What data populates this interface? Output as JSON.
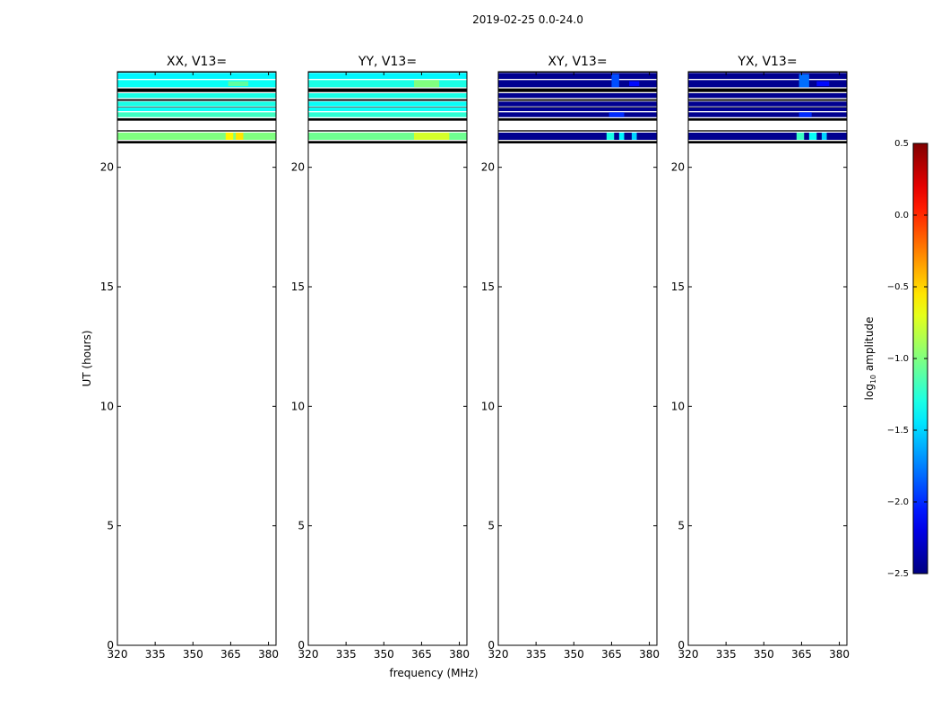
{
  "figure_title": "2019-02-25 0.0-24.0",
  "chart_data": {
    "type": "heatmap",
    "title": "2019-02-25 0.0-24.0",
    "xlabel": "frequency (MHz)",
    "ylabel": "UT (hours)",
    "xlim": [
      320,
      383
    ],
    "ylim": [
      0,
      24
    ],
    "x_ticks": [
      320,
      335,
      350,
      365,
      380
    ],
    "y_ticks": [
      0,
      5,
      10,
      15,
      20
    ],
    "panels": [
      {
        "title": "XX, V13=",
        "base_value": -1.3,
        "rows": [
          {
            "t0": 23.7,
            "t1": 23.95,
            "v": -1.4
          },
          {
            "t0": 23.35,
            "t1": 23.65,
            "v": -1.35
          },
          {
            "t0": 22.9,
            "t1": 23.1,
            "v": -1.3
          },
          {
            "t0": 22.55,
            "t1": 22.75,
            "v": -1.3
          },
          {
            "t0": 22.35,
            "t1": 22.5,
            "v": -1.35
          },
          {
            "t0": 22.1,
            "t1": 22.3,
            "v": -1.2
          },
          {
            "t0": 21.15,
            "t1": 21.45,
            "v": -1.0
          }
        ],
        "hotspots": [
          {
            "f0": 363,
            "f1": 366,
            "t0": 21.15,
            "t1": 21.45,
            "v": -0.6
          },
          {
            "f0": 367,
            "f1": 370,
            "t0": 21.15,
            "t1": 21.45,
            "v": -0.55
          },
          {
            "f0": 364,
            "f1": 372,
            "t0": 23.4,
            "t1": 23.6,
            "v": -1.1
          }
        ]
      },
      {
        "title": "YY, V13=",
        "base_value": -1.3,
        "rows": [
          {
            "t0": 23.7,
            "t1": 23.95,
            "v": -1.4
          },
          {
            "t0": 23.35,
            "t1": 23.65,
            "v": -1.3
          },
          {
            "t0": 22.9,
            "t1": 23.1,
            "v": -1.3
          },
          {
            "t0": 22.55,
            "t1": 22.75,
            "v": -1.35
          },
          {
            "t0": 22.35,
            "t1": 22.5,
            "v": -1.35
          },
          {
            "t0": 22.1,
            "t1": 22.3,
            "v": -1.25
          },
          {
            "t0": 21.15,
            "t1": 21.45,
            "v": -1.05
          }
        ],
        "hotspots": [
          {
            "f0": 362,
            "f1": 376,
            "t0": 21.15,
            "t1": 21.45,
            "v": -0.75
          },
          {
            "f0": 362,
            "f1": 372,
            "t0": 23.35,
            "t1": 23.65,
            "v": -1.0
          }
        ]
      },
      {
        "title": "XY, V13=",
        "base_value": -2.45,
        "rows": [
          {
            "t0": 23.7,
            "t1": 23.95,
            "v": -2.45
          },
          {
            "t0": 23.35,
            "t1": 23.65,
            "v": -2.45
          },
          {
            "t0": 22.9,
            "t1": 23.1,
            "v": -2.45
          },
          {
            "t0": 22.55,
            "t1": 22.75,
            "v": -2.45
          },
          {
            "t0": 22.35,
            "t1": 22.5,
            "v": -2.45
          },
          {
            "t0": 22.1,
            "t1": 22.3,
            "v": -2.45
          },
          {
            "t0": 21.15,
            "t1": 21.45,
            "v": -2.45
          }
        ],
        "hotspots": [
          {
            "f0": 363,
            "f1": 366,
            "t0": 21.15,
            "t1": 21.45,
            "v": -1.3
          },
          {
            "f0": 368,
            "f1": 370,
            "t0": 21.15,
            "t1": 21.45,
            "v": -1.4
          },
          {
            "f0": 373,
            "f1": 375,
            "t0": 21.15,
            "t1": 21.45,
            "v": -1.5
          },
          {
            "f0": 365,
            "f1": 368,
            "t0": 23.35,
            "t1": 23.9,
            "v": -1.9
          },
          {
            "f0": 372,
            "f1": 376,
            "t0": 23.4,
            "t1": 23.6,
            "v": -2.1
          },
          {
            "f0": 364,
            "f1": 370,
            "t0": 22.1,
            "t1": 22.3,
            "v": -2.0
          }
        ]
      },
      {
        "title": "YX, V13=",
        "base_value": -2.45,
        "rows": [
          {
            "t0": 23.7,
            "t1": 23.95,
            "v": -2.45
          },
          {
            "t0": 23.35,
            "t1": 23.65,
            "v": -2.45
          },
          {
            "t0": 22.9,
            "t1": 23.1,
            "v": -2.45
          },
          {
            "t0": 22.55,
            "t1": 22.75,
            "v": -2.45
          },
          {
            "t0": 22.35,
            "t1": 22.5,
            "v": -2.45
          },
          {
            "t0": 22.1,
            "t1": 22.3,
            "v": -2.45
          },
          {
            "t0": 21.15,
            "t1": 21.45,
            "v": -2.45
          }
        ],
        "hotspots": [
          {
            "f0": 363,
            "f1": 366,
            "t0": 21.15,
            "t1": 21.45,
            "v": -1.2
          },
          {
            "f0": 368,
            "f1": 371,
            "t0": 21.15,
            "t1": 21.45,
            "v": -1.35
          },
          {
            "f0": 373,
            "f1": 375,
            "t0": 21.15,
            "t1": 21.45,
            "v": -1.5
          },
          {
            "f0": 364,
            "f1": 368,
            "t0": 23.35,
            "t1": 23.9,
            "v": -1.8
          },
          {
            "f0": 371,
            "f1": 376,
            "t0": 23.4,
            "t1": 23.6,
            "v": -2.1
          },
          {
            "f0": 364,
            "f1": 369,
            "t0": 22.1,
            "t1": 22.3,
            "v": -2.0
          }
        ]
      }
    ],
    "colorbar": {
      "label_prefix": "log",
      "label_subscript": "10",
      "label_suffix": " amplitude",
      "range": [
        -2.5,
        0.5
      ],
      "ticks": [
        0.5,
        0.0,
        -0.5,
        -1.0,
        -1.5,
        -2.0,
        -2.5
      ],
      "tick_labels": [
        "0.5",
        "0.0",
        "−0.5",
        "−1.0",
        "−1.5",
        "−2.0",
        "−2.5"
      ],
      "colormap": "jet"
    }
  }
}
